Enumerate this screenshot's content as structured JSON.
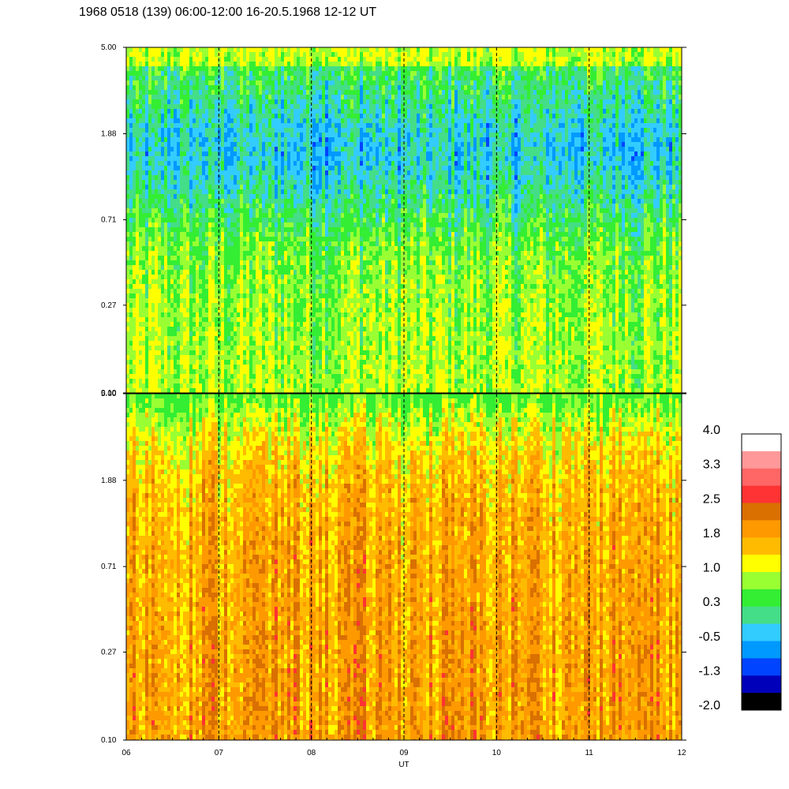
{
  "chart_data": {
    "type": "heatmap",
    "title": "1968 0518 (139) 06:00-12:00 16-20.5.1968  12-12 UT",
    "xlabel": "UT",
    "x_ticks": [
      "06",
      "07",
      "08",
      "09",
      "10",
      "11",
      "12"
    ],
    "x_range": [
      6,
      12
    ],
    "dashed_lines_at": [
      7,
      8,
      9,
      10,
      11
    ],
    "y_scale": "log",
    "y_range": [
      0.1,
      5.0
    ],
    "panels": [
      {
        "name": "upper",
        "y_ticks": [
          "5.00",
          "1.88",
          "0.71",
          "0.27",
          "0.10"
        ],
        "typical_value": 0.5,
        "value_range": [
          -1.5,
          1.3
        ]
      },
      {
        "name": "lower",
        "y_ticks": [
          "5.00",
          "1.88",
          "0.71",
          "0.27",
          "0.10"
        ],
        "typical_value": 1.7,
        "value_range": [
          0.3,
          2.6
        ]
      }
    ],
    "colorbar": {
      "labels": [
        "4.0",
        "3.3",
        "2.5",
        "1.8",
        "1.0",
        "0.3",
        "-0.5",
        "-1.3",
        "-2.0"
      ],
      "range": [
        -2.0,
        4.0
      ],
      "colors": [
        "#ffffff",
        "#ff9999",
        "#ff6666",
        "#ff3333",
        "#d97000",
        "#ff9900",
        "#ffbb00",
        "#ffff00",
        "#99ff33",
        "#33ee33",
        "#44dd88",
        "#33ccff",
        "#0099ff",
        "#0044ff",
        "#0000bb",
        "#000000"
      ]
    }
  }
}
